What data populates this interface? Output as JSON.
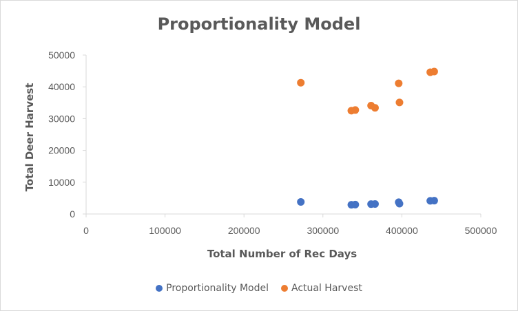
{
  "chart_data": {
    "type": "scatter",
    "title": "Proportionality Model",
    "xlabel": "Total Number of Rec Days",
    "ylabel": "Total Deer Harvest",
    "xlim": [
      0,
      500000
    ],
    "ylim": [
      0,
      50000
    ],
    "x_ticks": [
      "0",
      "100000",
      "200000",
      "300000",
      "400000",
      "500000"
    ],
    "y_ticks": [
      "0",
      "10000",
      "20000",
      "30000",
      "40000",
      "50000"
    ],
    "grid": false,
    "legend_position": "bottom",
    "series": [
      {
        "name": "Proportionality Model",
        "color": "#4472C4",
        "points": [
          [
            272000,
            3800
          ],
          [
            336000,
            2900
          ],
          [
            341000,
            2950
          ],
          [
            361000,
            3100
          ],
          [
            366000,
            3150
          ],
          [
            396000,
            3700
          ],
          [
            397000,
            3250
          ],
          [
            436000,
            4150
          ],
          [
            441000,
            4200
          ]
        ]
      },
      {
        "name": "Actual Harvest",
        "color": "#ED7D31",
        "points": [
          [
            272000,
            41300
          ],
          [
            336000,
            32500
          ],
          [
            341000,
            32700
          ],
          [
            361000,
            34100
          ],
          [
            366000,
            33400
          ],
          [
            396000,
            41100
          ],
          [
            397000,
            35100
          ],
          [
            436000,
            44600
          ],
          [
            441000,
            44800
          ]
        ]
      }
    ]
  }
}
